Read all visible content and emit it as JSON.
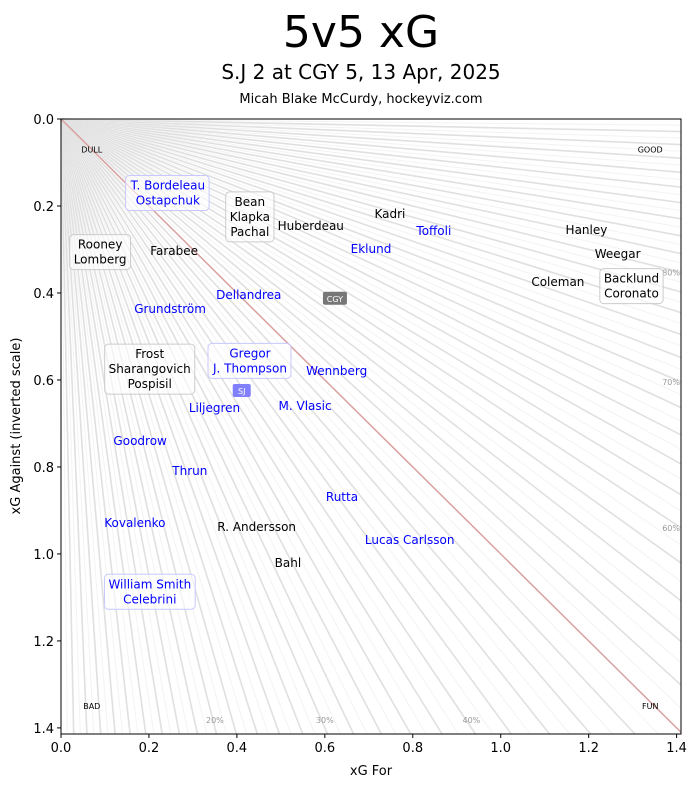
{
  "chart_data": {
    "type": "scatter",
    "title": "5v5 xG",
    "subtitle": "S.J 2 at CGY 5, 13 Apr, 2025",
    "credit": "Micah Blake McCurdy, hockeyviz.com",
    "xlabel": "xG For",
    "ylabel": "xG Against (inverted scale)",
    "xlim": [
      0,
      1.41
    ],
    "ylim": [
      0,
      1.414
    ],
    "y_inverted": true,
    "xticks": [
      "0.0",
      "0.2",
      "0.4",
      "0.6",
      "0.8",
      "1.0",
      "1.2",
      "1.4"
    ],
    "yticks": [
      "0.0",
      "0.2",
      "0.4",
      "0.6",
      "0.8",
      "1.0",
      "1.2",
      "1.4"
    ],
    "colors": {
      "SJ": "#0000ff",
      "CGY": "#000000",
      "diagonal": "#d9a0a0",
      "fan": "#e0e0e0",
      "badge_SJ": "#8080ff",
      "badge_CGY": "#777777"
    },
    "corners": [
      {
        "text": "DULL",
        "x": 0.07,
        "y": 0.07
      },
      {
        "text": "GOOD",
        "x": 1.34,
        "y": 0.07
      },
      {
        "text": "BAD",
        "x": 0.07,
        "y": 1.35
      },
      {
        "text": "FUN",
        "x": 1.34,
        "y": 1.35
      }
    ],
    "pct_labels": [
      {
        "text": "80%",
        "p": 0.8,
        "edge": "right"
      },
      {
        "text": "70%",
        "p": 0.7,
        "edge": "right"
      },
      {
        "text": "60%",
        "p": 0.6,
        "edge": "right"
      },
      {
        "text": "20%",
        "p": 0.2,
        "edge": "bottom"
      },
      {
        "text": "30%",
        "p": 0.3,
        "edge": "bottom"
      },
      {
        "text": "40%",
        "p": 0.4,
        "edge": "bottom"
      }
    ],
    "teams": [
      {
        "text": "CGY",
        "team": "CGY",
        "x": 0.623,
        "y": 0.411
      },
      {
        "text": "SJ",
        "team": "SJ",
        "x": 0.411,
        "y": 0.623
      }
    ],
    "players": [
      {
        "lines": [
          "T. Bordeleau",
          "Ostapchuk"
        ],
        "team": "SJ",
        "x": 0.243,
        "y": 0.17,
        "boxed": true
      },
      {
        "lines": [
          "Bean",
          "Klapka",
          "Pachal"
        ],
        "team": "CGY",
        "x": 0.525,
        "y": 0.225,
        "boxed": true
      },
      {
        "lines": [
          "Huberdeau"
        ],
        "team": "CGY",
        "x": 0.568,
        "y": 0.246
      },
      {
        "lines": [
          "Kadri"
        ],
        "team": "CGY",
        "x": 0.748,
        "y": 0.218
      },
      {
        "lines": [
          "Toffoli"
        ],
        "team": "SJ",
        "x": 0.848,
        "y": 0.257
      },
      {
        "lines": [
          "Eklund"
        ],
        "team": "SJ",
        "x": 0.705,
        "y": 0.299
      },
      {
        "lines": [
          "Hanley"
        ],
        "team": "CGY",
        "x": 1.195,
        "y": 0.255
      },
      {
        "lines": [
          "Weegar"
        ],
        "team": "CGY",
        "x": 1.266,
        "y": 0.31
      },
      {
        "lines": [
          "Coleman"
        ],
        "team": "CGY",
        "x": 1.13,
        "y": 0.375
      },
      {
        "lines": [
          "Backlund",
          "Coronato"
        ],
        "team": "CGY",
        "x": 1.311,
        "y": 0.375,
        "boxed": true
      },
      {
        "lines": [
          "Rooney",
          "Lomberg"
        ],
        "team": "CGY",
        "x": 0.089,
        "y": 0.306,
        "boxed": true
      },
      {
        "lines": [
          "Farabee"
        ],
        "team": "CGY",
        "x": 0.139,
        "y": 0.303
      },
      {
        "lines": [
          "Dellandrea"
        ],
        "team": "SJ",
        "x": 0.427,
        "y": 0.405
      },
      {
        "lines": [
          "Grundström"
        ],
        "team": "SJ",
        "x": 0.248,
        "y": 0.437
      },
      {
        "lines": [
          "Frost",
          "Sharangovich",
          "Pospisil"
        ],
        "team": "CGY",
        "x": 0.27,
        "y": 0.575,
        "boxed": true
      },
      {
        "lines": [
          "Gregor",
          "J. Thompson"
        ],
        "team": "SJ",
        "x": 0.357,
        "y": 0.57,
        "boxed": true
      },
      {
        "lines": [
          "Liljegren"
        ],
        "team": "SJ",
        "x": 0.34,
        "y": 0.618
      },
      {
        "lines": [
          "Wennberg"
        ],
        "team": "SJ",
        "x": 0.627,
        "y": 0.579
      },
      {
        "lines": [
          "M. Vlasic"
        ],
        "team": "SJ",
        "x": 0.555,
        "y": 0.66
      },
      {
        "lines": [
          "Goodrow"
        ],
        "team": "SJ",
        "x": 0.18,
        "y": 0.74
      },
      {
        "lines": [
          "Thrun"
        ],
        "team": "SJ",
        "x": 0.293,
        "y": 0.809
      },
      {
        "lines": [
          "Rutta"
        ],
        "team": "SJ",
        "x": 0.639,
        "y": 0.869
      },
      {
        "lines": [
          "Kovalenko"
        ],
        "team": "SJ",
        "x": 0.168,
        "y": 0.929
      },
      {
        "lines": [
          "R. Andersson"
        ],
        "team": "CGY",
        "x": 0.445,
        "y": 0.938
      },
      {
        "lines": [
          "Lucas Carlsson"
        ],
        "team": "SJ",
        "x": 0.793,
        "y": 0.968
      },
      {
        "lines": [
          "Bahl"
        ],
        "team": "CGY",
        "x": 0.516,
        "y": 1.021
      },
      {
        "lines": [
          "William Smith",
          "Celebrini"
        ],
        "team": "SJ",
        "x": 0.202,
        "y": 1.087,
        "boxed": true
      }
    ]
  }
}
